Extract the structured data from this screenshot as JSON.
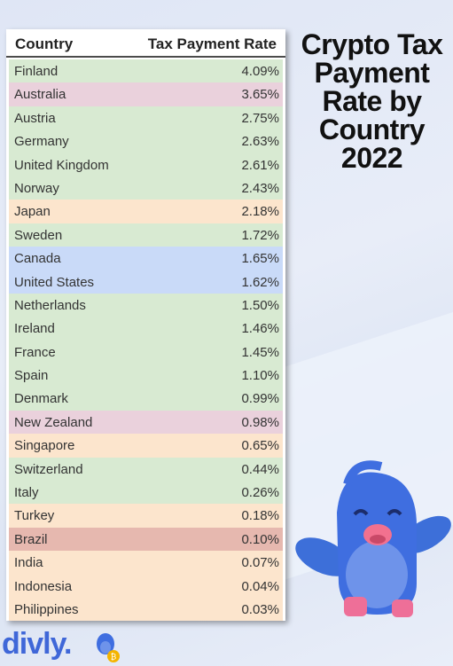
{
  "table": {
    "header_country": "Country",
    "header_rate": "Tax Payment Rate",
    "rows": [
      {
        "country": "Finland",
        "rate": "4.09%",
        "color": "#d8ead2"
      },
      {
        "country": "Australia",
        "rate": "3.65%",
        "color": "#ead1dc"
      },
      {
        "country": "Austria",
        "rate": "2.75%",
        "color": "#d8ead2"
      },
      {
        "country": "Germany",
        "rate": "2.63%",
        "color": "#d8ead2"
      },
      {
        "country": "United Kingdom",
        "rate": "2.61%",
        "color": "#d8ead2"
      },
      {
        "country": "Norway",
        "rate": "2.43%",
        "color": "#d8ead2"
      },
      {
        "country": "Japan",
        "rate": "2.18%",
        "color": "#fce5cd"
      },
      {
        "country": "Sweden",
        "rate": "1.72%",
        "color": "#d8ead2"
      },
      {
        "country": "Canada",
        "rate": "1.65%",
        "color": "#c9daf8"
      },
      {
        "country": "United States",
        "rate": "1.62%",
        "color": "#c9daf8"
      },
      {
        "country": "Netherlands",
        "rate": "1.50%",
        "color": "#d8ead2"
      },
      {
        "country": "Ireland",
        "rate": "1.46%",
        "color": "#d8ead2"
      },
      {
        "country": "France",
        "rate": "1.45%",
        "color": "#d8ead2"
      },
      {
        "country": "Spain",
        "rate": "1.10%",
        "color": "#d8ead2"
      },
      {
        "country": "Denmark",
        "rate": "0.99%",
        "color": "#d8ead2"
      },
      {
        "country": "New Zealand",
        "rate": "0.98%",
        "color": "#ead1dc"
      },
      {
        "country": "Singapore",
        "rate": "0.65%",
        "color": "#fce5cd"
      },
      {
        "country": "Switzerland",
        "rate": "0.44%",
        "color": "#d8ead2"
      },
      {
        "country": "Italy",
        "rate": "0.26%",
        "color": "#d8ead2"
      },
      {
        "country": "Turkey",
        "rate": "0.18%",
        "color": "#fce5cd"
      },
      {
        "country": "Brazil",
        "rate": "0.10%",
        "color": "#e6b8af"
      },
      {
        "country": "India",
        "rate": "0.07%",
        "color": "#fce5cd"
      },
      {
        "country": "Indonesia",
        "rate": "0.04%",
        "color": "#fce5cd"
      },
      {
        "country": "Philippines",
        "rate": "0.03%",
        "color": "#fce5cd"
      }
    ]
  },
  "title": {
    "line1": "Crypto Tax",
    "line2": "Payment",
    "line3": "Rate by",
    "line4": "Country",
    "line5": "2022"
  },
  "brand": {
    "logo_text": "divly.",
    "logo_color": "#3f67d8",
    "mascot_icon": "blue-bird-mascot-icon"
  }
}
